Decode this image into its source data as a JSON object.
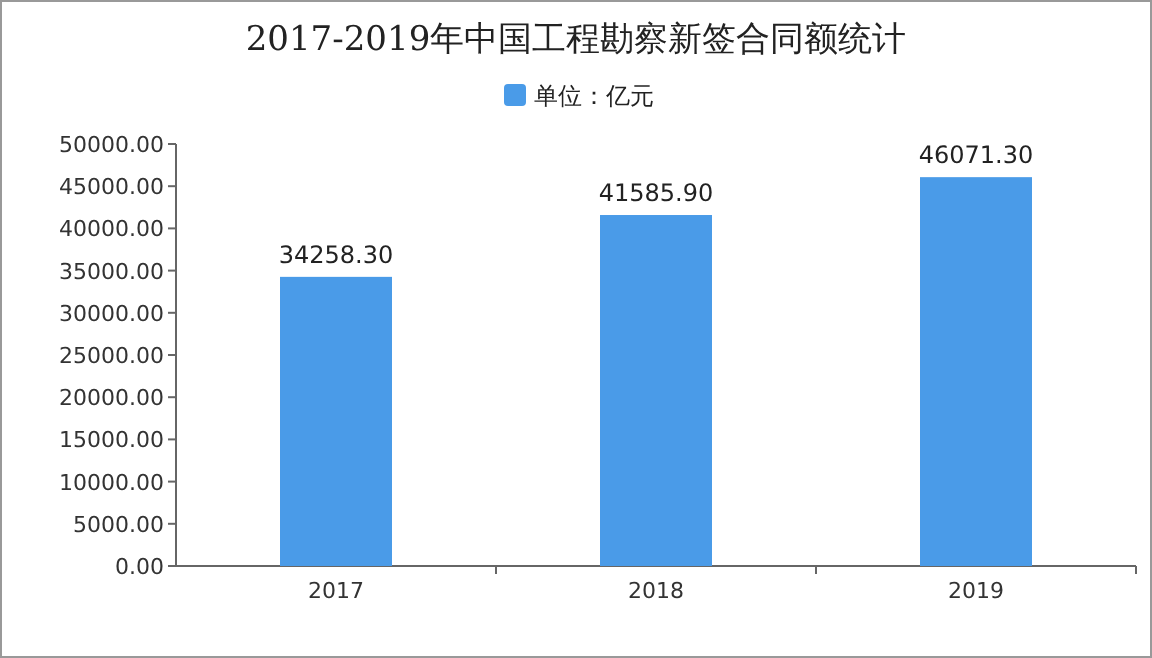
{
  "chart_data": {
    "type": "bar",
    "title": "2017-2019年中国工程勘察新签合同额统计",
    "categories": [
      "2017",
      "2018",
      "2019"
    ],
    "series": [
      {
        "name": "单位：亿元",
        "color": "#4a9be8",
        "values": [
          34258.3,
          41585.9,
          46071.3
        ],
        "value_labels": [
          "34258.30",
          "41585.90",
          "46071.30"
        ]
      }
    ],
    "ylim": [
      0,
      50000
    ],
    "yticks": [
      {
        "value": 0,
        "label": "0.00"
      },
      {
        "value": 5000,
        "label": "5000.00"
      },
      {
        "value": 10000,
        "label": "10000.00"
      },
      {
        "value": 15000,
        "label": "15000.00"
      },
      {
        "value": 20000,
        "label": "20000.00"
      },
      {
        "value": 25000,
        "label": "25000.00"
      },
      {
        "value": 30000,
        "label": "30000.00"
      },
      {
        "value": 35000,
        "label": "35000.00"
      },
      {
        "value": 40000,
        "label": "40000.00"
      },
      {
        "value": 45000,
        "label": "45000.00"
      },
      {
        "value": 50000,
        "label": "50000.00"
      }
    ],
    "legend": "top",
    "grid": false
  }
}
